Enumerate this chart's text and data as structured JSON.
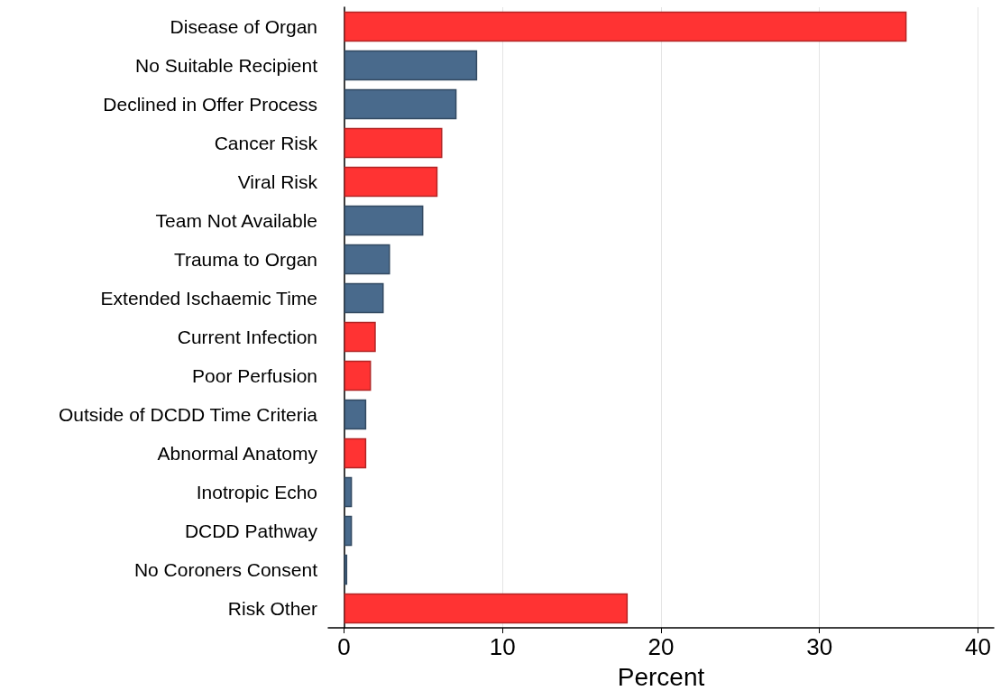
{
  "chart_data": {
    "type": "bar",
    "orientation": "horizontal",
    "xlabel": "Percent",
    "categories": [
      "Disease of Organ",
      "No Suitable Recipient",
      "Declined in Offer Process",
      "Cancer Risk",
      "Viral Risk",
      "Team Not Available",
      "Trauma to Organ",
      "Extended Ischaemic Time",
      "Current Infection",
      "Poor Perfusion",
      "Outside of DCDD Time Criteria",
      "Abnormal Anatomy",
      "Inotropic Echo",
      "DCDD Pathway",
      "No Coroners Consent",
      "Risk Other"
    ],
    "values": [
      35.5,
      8.4,
      7.1,
      6.2,
      5.9,
      5.0,
      2.9,
      2.5,
      2.0,
      1.7,
      1.4,
      1.4,
      0.5,
      0.5,
      0.2,
      17.9
    ],
    "colors": [
      "#ff3333",
      "#496a8c",
      "#496a8c",
      "#ff3333",
      "#ff3333",
      "#496a8c",
      "#496a8c",
      "#496a8c",
      "#ff3333",
      "#ff3333",
      "#496a8c",
      "#ff3333",
      "#496a8c",
      "#496a8c",
      "#496a8c",
      "#ff3333"
    ],
    "xlim": [
      -1,
      41
    ],
    "xticks": [
      0,
      10,
      20,
      30,
      40
    ],
    "grid": "x"
  }
}
